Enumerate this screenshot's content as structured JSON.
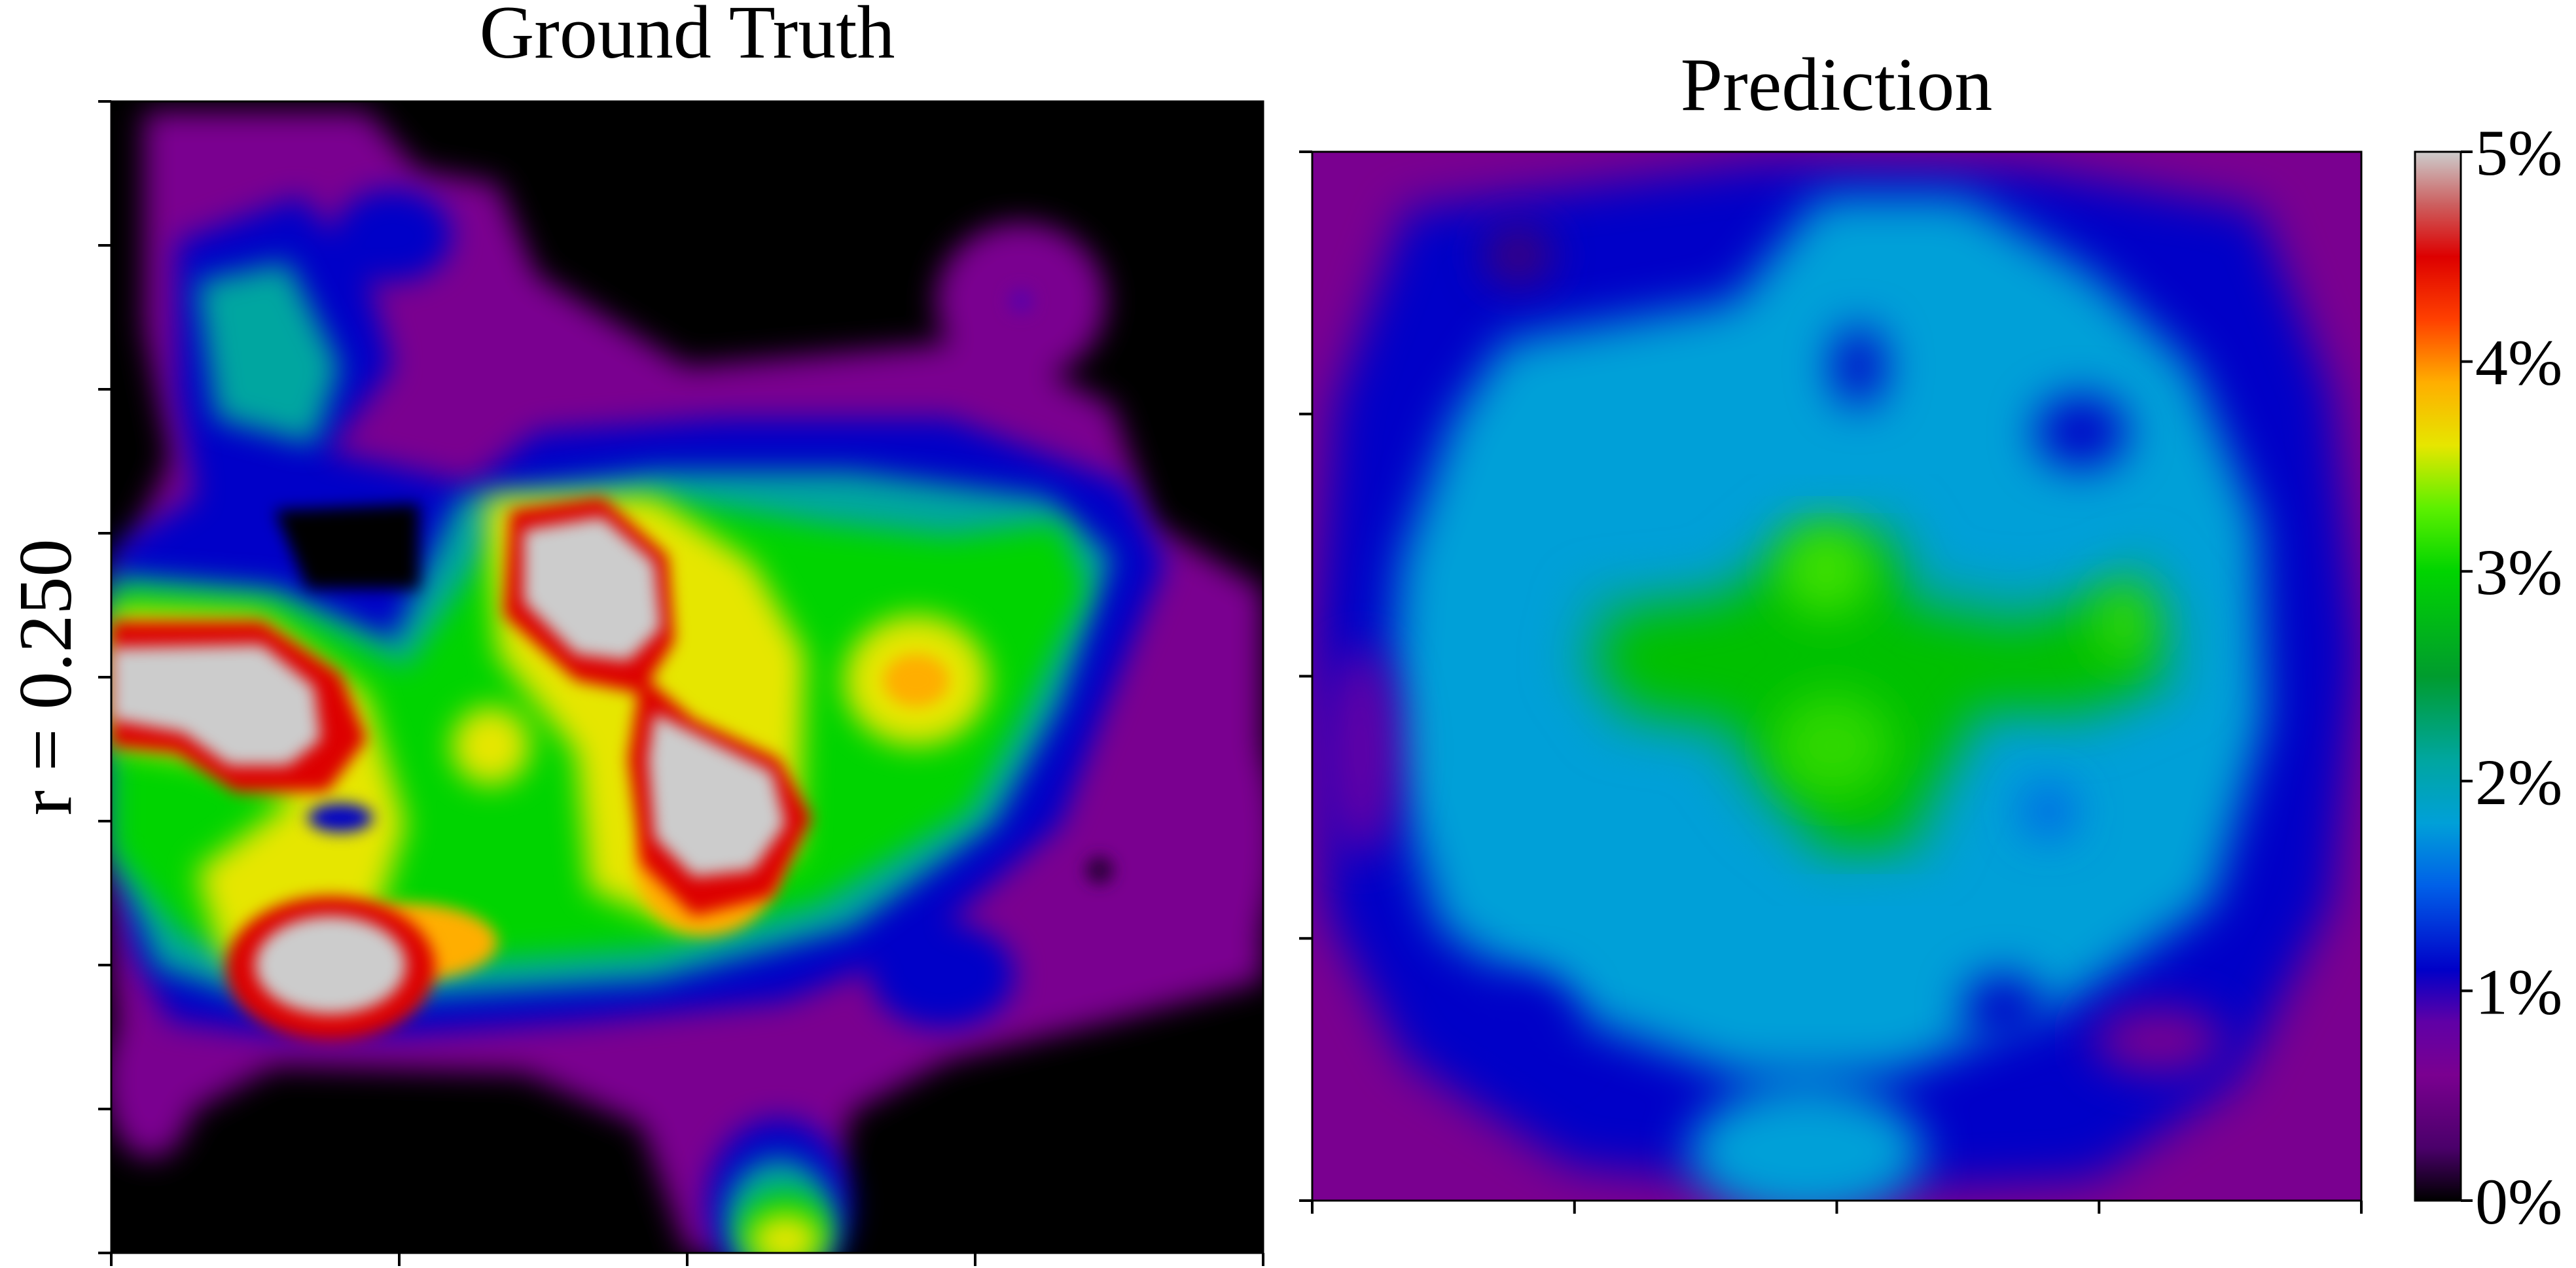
{
  "figure": {
    "row_label": "r = 0.250",
    "panels": [
      {
        "title": "Ground Truth"
      },
      {
        "title": "Prediction"
      }
    ],
    "colorbar": {
      "tick_labels": [
        "0%",
        "1%",
        "2%",
        "3%",
        "4%",
        "5%"
      ],
      "colormap": "nipy_spectral-like (black → purple → blue → cyan → green → yellow → red → gray)"
    }
  },
  "chart_data": [
    {
      "type": "heatmap",
      "title": "Ground Truth",
      "ylabel": "r = 0.250",
      "value_range": [
        0,
        5
      ],
      "units": "%",
      "x_ticks": 5,
      "y_ticks": 9,
      "tick_labels_shown": false,
      "features": [
        {
          "region": "left",
          "peak_percent": 5
        },
        {
          "region": "center-upper",
          "peak_percent": 5
        },
        {
          "region": "center",
          "peak_percent": 5
        },
        {
          "region": "lower-left",
          "peak_percent": 5
        },
        {
          "region": "center-right",
          "peak_percent": 3.8
        },
        {
          "region": "upper-left",
          "peak_percent": 2
        },
        {
          "region": "bottom-center",
          "peak_percent": 3.5
        }
      ]
    },
    {
      "type": "heatmap",
      "title": "Prediction",
      "value_range": [
        0,
        5
      ],
      "units": "%",
      "x_ticks": 5,
      "y_ticks": 5,
      "tick_labels_shown": false,
      "features": [
        {
          "region": "center",
          "peak_percent": 3
        },
        {
          "region": "surrounding ring",
          "peak_percent": 1.8
        },
        {
          "region": "edges",
          "peak_percent": 0.8
        }
      ]
    }
  ]
}
